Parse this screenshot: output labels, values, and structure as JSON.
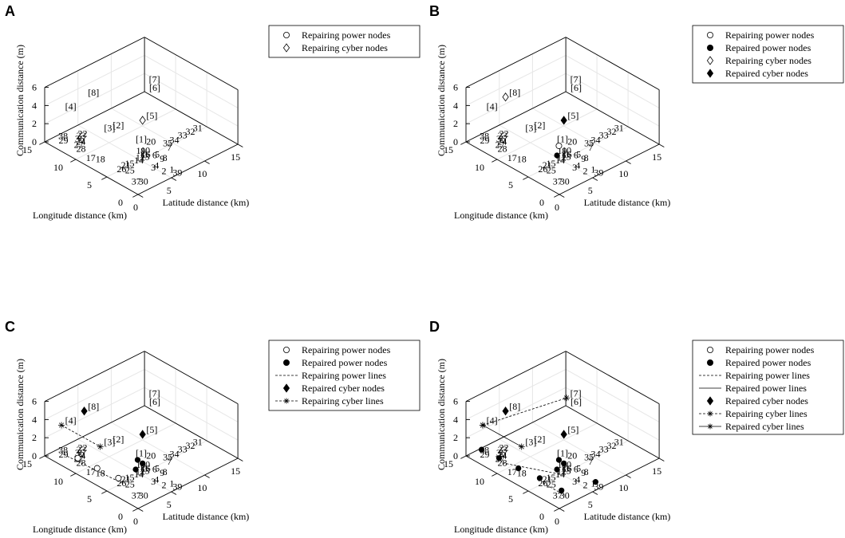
{
  "colors": {
    "foreground": "#000000",
    "grid": "#e6e6e6",
    "background": "#ffffff"
  },
  "chart_data": [
    {
      "panel": "A",
      "type": "scatter3d",
      "xlabel": "Latitude distance (km)",
      "ylabel": "Longitude distance (km)",
      "zlabel": "Communication distance (m)",
      "x_ticks": [
        "0",
        "5",
        "10",
        "15"
      ],
      "y_ticks": [
        "0",
        "5",
        "10",
        "15"
      ],
      "z_ticks": [
        "0",
        "2",
        "4",
        "6"
      ],
      "legend": [
        "Repairing power nodes",
        "Repairing cyber nodes"
      ],
      "repairing_power_nodes": [],
      "repaired_power_nodes": [],
      "repairing_cyber_nodes": [
        5
      ],
      "repaired_cyber_nodes": [],
      "repairing_power_lines": [],
      "repaired_power_lines": [],
      "repairing_cyber_lines": [],
      "repaired_cyber_lines": []
    },
    {
      "panel": "B",
      "type": "scatter3d",
      "xlabel": "Latitude distance (km)",
      "ylabel": "Longitude distance (km)",
      "zlabel": "Communication distance (m)",
      "x_ticks": [
        "0",
        "5",
        "10",
        "15"
      ],
      "y_ticks": [
        "0",
        "5",
        "10",
        "15"
      ],
      "z_ticks": [
        "0",
        "2",
        "4",
        "6"
      ],
      "legend": [
        "Repairing power nodes",
        "Repaired power nodes",
        "Repairing cyber nodes",
        "Repaired cyber nodes"
      ],
      "repairing_power_nodes": [
        19
      ],
      "repaired_power_nodes": [
        14
      ],
      "repairing_cyber_nodes": [
        8
      ],
      "repaired_cyber_nodes": [
        5
      ],
      "repairing_power_lines": [],
      "repaired_power_lines": [],
      "repairing_cyber_lines": [],
      "repaired_cyber_lines": []
    },
    {
      "panel": "C",
      "type": "scatter3d",
      "xlabel": "Latitude distance (km)",
      "ylabel": "Longitude distance (km)",
      "zlabel": "Communication distance (m)",
      "x_ticks": [
        "0",
        "5",
        "10",
        "15"
      ],
      "y_ticks": [
        "0",
        "5",
        "10",
        "15"
      ],
      "z_ticks": [
        "0",
        "2",
        "4",
        "6"
      ],
      "legend": [
        "Repairing power nodes",
        "Repaired power nodes",
        "Repairing power lines",
        "Repaired cyber nodes",
        "Repairing cyber lines"
      ],
      "repairing_power_nodes": [
        28,
        18,
        26
      ],
      "repaired_power_nodes": [
        19,
        14,
        16
      ],
      "repairing_cyber_nodes": [],
      "repaired_cyber_nodes": [
        8,
        5
      ],
      "repairing_power_lines": [
        [
          29,
          28
        ],
        [
          28,
          26
        ]
      ],
      "repaired_power_lines": [],
      "repairing_cyber_lines": [
        [
          4,
          3
        ]
      ],
      "repaired_cyber_lines": []
    },
    {
      "panel": "D",
      "type": "scatter3d",
      "xlabel": "Latitude distance (km)",
      "ylabel": "Longitude distance (km)",
      "zlabel": "Communication distance (m)",
      "x_ticks": [
        "0",
        "5",
        "10",
        "15"
      ],
      "y_ticks": [
        "0",
        "5",
        "10",
        "15"
      ],
      "z_ticks": [
        "0",
        "2",
        "4",
        "6"
      ],
      "legend": [
        "Repairing power nodes",
        "Repaired power nodes",
        "Repairing power lines",
        "Repaired power lines",
        "Repaired cyber nodes",
        "Repairing cyber lines",
        "Repaired cyber lines"
      ],
      "repairing_power_nodes": [],
      "repaired_power_nodes": [
        29,
        28,
        18,
        26,
        19,
        14,
        16,
        39,
        30
      ],
      "repairing_cyber_nodes": [],
      "repaired_cyber_nodes": [
        8,
        5
      ],
      "repairing_power_lines": [
        [
          28,
          14
        ],
        [
          26,
          30
        ]
      ],
      "repaired_power_lines": [],
      "repairing_cyber_lines": [
        [
          4,
          7
        ]
      ],
      "repaired_cyber_lines": [
        [
          4,
          3
        ]
      ]
    }
  ],
  "nodes": {
    "power": [
      {
        "label": "1",
        "x": 6.2,
        "y": 1.2
      },
      {
        "label": "2",
        "x": 5.4,
        "y": 1.6
      },
      {
        "label": "3",
        "x": 5.0,
        "y": 2.9
      },
      {
        "label": "4",
        "x": 5.6,
        "y": 3.0
      },
      {
        "label": "5",
        "x": 7.2,
        "y": 4.6
      },
      {
        "label": "6",
        "x": 6.9,
        "y": 4.7
      },
      {
        "label": "7",
        "x": 9.1,
        "y": 4.7
      },
      {
        "label": "8",
        "x": 7.3,
        "y": 3.5
      },
      {
        "label": "9",
        "x": 7.0,
        "y": 3.6
      },
      {
        "label": "10",
        "x": 6.8,
        "y": 6.1
      },
      {
        "label": "11",
        "x": 6.1,
        "y": 5.6
      },
      {
        "label": "12",
        "x": 5.4,
        "y": 5.4
      },
      {
        "label": "13",
        "x": 5.9,
        "y": 5.2
      },
      {
        "label": "14",
        "x": 4.9,
        "y": 5.1
      },
      {
        "label": "15",
        "x": 3.7,
        "y": 5.3
      },
      {
        "label": "16",
        "x": 6.3,
        "y": 5.5
      },
      {
        "label": "17",
        "x": 1.4,
        "y": 9.1
      },
      {
        "label": "18",
        "x": 2.0,
        "y": 8.2
      },
      {
        "label": "19",
        "x": 6.4,
        "y": 6.4
      },
      {
        "label": "20",
        "x": 8.5,
        "y": 7.0
      },
      {
        "label": "21",
        "x": 3.2,
        "y": 5.4
      },
      {
        "label": "22",
        "x": 4.2,
        "y": 13.4
      },
      {
        "label": "23",
        "x": 3.8,
        "y": 13.2
      },
      {
        "label": "24",
        "x": 2.9,
        "y": 12.3
      },
      {
        "label": "25",
        "x": 2.8,
        "y": 4.3
      },
      {
        "label": "26",
        "x": 2.3,
        "y": 5.1
      },
      {
        "label": "27",
        "x": 2.3,
        "y": 12.0
      },
      {
        "label": "28",
        "x": 1.9,
        "y": 11.2
      },
      {
        "label": "29",
        "x": 1.7,
        "y": 13.8
      },
      {
        "label": "30",
        "x": 2.3,
        "y": 1.6
      },
      {
        "label": "31",
        "x": 14.1,
        "y": 5.5
      },
      {
        "label": "32",
        "x": 13.0,
        "y": 5.5
      },
      {
        "label": "33",
        "x": 11.9,
        "y": 5.6
      },
      {
        "label": "34",
        "x": 10.6,
        "y": 5.5
      },
      {
        "label": "35",
        "x": 9.6,
        "y": 5.5
      },
      {
        "label": "36",
        "x": 3.2,
        "y": 12.8
      },
      {
        "label": "37",
        "x": 1.7,
        "y": 2.1
      },
      {
        "label": "38",
        "x": 2.3,
        "y": 14.5
      },
      {
        "label": "39",
        "x": 6.2,
        "y": 0.3
      }
    ],
    "cyber": [
      {
        "label": "[1]",
        "x": 6.0,
        "y": 5.9,
        "z": 1.6
      },
      {
        "label": "[2]",
        "x": 4.9,
        "y": 8.4,
        "z": 2.6
      },
      {
        "label": "[3]",
        "x": 3.4,
        "y": 8.2,
        "z": 2.9
      },
      {
        "label": "[4]",
        "x": 1.3,
        "y": 12.2,
        "z": 4.5
      },
      {
        "label": "[5]",
        "x": 7.6,
        "y": 5.9,
        "z": 3.6
      },
      {
        "label": "[6]",
        "x": 11.5,
        "y": 9.6,
        "z": 3.8
      },
      {
        "label": "[7]",
        "x": 12.3,
        "y": 10.5,
        "z": 4.1
      },
      {
        "label": "[8]",
        "x": 5.1,
        "y": 12.6,
        "z": 4.5
      }
    ]
  }
}
